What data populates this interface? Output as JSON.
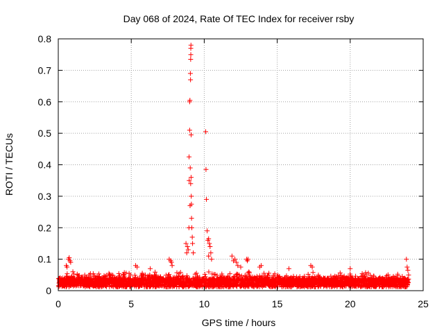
{
  "chart_data": {
    "type": "scatter",
    "title": "Day 068 of 2024, Rate Of TEC Index for receiver rsby",
    "xlabel": "GPS time / hours",
    "ylabel": "ROTI / TECUs",
    "xlim": [
      0,
      25
    ],
    "ylim": [
      0,
      0.8
    ],
    "xticks": [
      "0",
      "5",
      "10",
      "15",
      "20",
      "25"
    ],
    "yticks": [
      "0",
      "0.1",
      "0.2",
      "0.3",
      "0.4",
      "0.5",
      "0.6",
      "0.7",
      "0.8"
    ],
    "grid": true,
    "marker": "plus",
    "color": "#ff0000",
    "series": [
      {
        "name": "ROTI",
        "points": [
          [
            8.75,
            0.15
          ],
          [
            8.8,
            0.12
          ],
          [
            8.85,
            0.14
          ],
          [
            8.9,
            0.13
          ],
          [
            8.95,
            0.2
          ],
          [
            8.96,
            0.425
          ],
          [
            8.97,
            0.35
          ],
          [
            9.0,
            0.51
          ],
          [
            9.0,
            0.6
          ],
          [
            9.02,
            0.605
          ],
          [
            9.03,
            0.27
          ],
          [
            9.04,
            0.39
          ],
          [
            9.05,
            0.69
          ],
          [
            9.06,
            0.67
          ],
          [
            9.07,
            0.34
          ],
          [
            9.07,
            0.735
          ],
          [
            9.08,
            0.75
          ],
          [
            9.08,
            0.77
          ],
          [
            9.09,
            0.78
          ],
          [
            9.1,
            0.495
          ],
          [
            9.1,
            0.36
          ],
          [
            9.11,
            0.3
          ],
          [
            9.12,
            0.275
          ],
          [
            9.13,
            0.23
          ],
          [
            9.15,
            0.2
          ],
          [
            9.18,
            0.17
          ],
          [
            9.2,
            0.15
          ],
          [
            9.25,
            0.12
          ],
          [
            10.1,
            0.505
          ],
          [
            10.12,
            0.385
          ],
          [
            10.15,
            0.29
          ],
          [
            10.2,
            0.19
          ],
          [
            10.25,
            0.16
          ],
          [
            10.3,
            0.165
          ],
          [
            10.35,
            0.15
          ],
          [
            10.4,
            0.14
          ],
          [
            10.45,
            0.12
          ],
          [
            10.5,
            0.1
          ],
          [
            10.3,
            0.11
          ],
          [
            0.7,
            0.1
          ],
          [
            0.75,
            0.105
          ],
          [
            0.8,
            0.095
          ],
          [
            0.85,
            0.09
          ],
          [
            0.55,
            0.08
          ],
          [
            0.6,
            0.075
          ],
          [
            1.0,
            0.06
          ],
          [
            5.3,
            0.08
          ],
          [
            5.4,
            0.075
          ],
          [
            6.3,
            0.07
          ],
          [
            7.6,
            0.1
          ],
          [
            7.7,
            0.095
          ],
          [
            7.75,
            0.09
          ],
          [
            7.8,
            0.08
          ],
          [
            11.9,
            0.11
          ],
          [
            12.0,
            0.095
          ],
          [
            12.1,
            0.1
          ],
          [
            12.2,
            0.09
          ],
          [
            12.3,
            0.08
          ],
          [
            12.5,
            0.075
          ],
          [
            12.9,
            0.1
          ],
          [
            12.95,
            0.095
          ],
          [
            13.0,
            0.1
          ],
          [
            13.8,
            0.075
          ],
          [
            13.9,
            0.08
          ],
          [
            15.8,
            0.07
          ],
          [
            17.3,
            0.08
          ],
          [
            17.4,
            0.075
          ],
          [
            20.0,
            0.07
          ],
          [
            23.85,
            0.1
          ],
          [
            23.9,
            0.075
          ],
          [
            23.95,
            0.065
          ],
          [
            24.0,
            0.05
          ]
        ]
      }
    ],
    "bulk_band": {
      "x_range": [
        0,
        24
      ],
      "y_range": [
        0.0,
        0.06
      ],
      "note": "dense noise floor of ROTI values"
    }
  }
}
